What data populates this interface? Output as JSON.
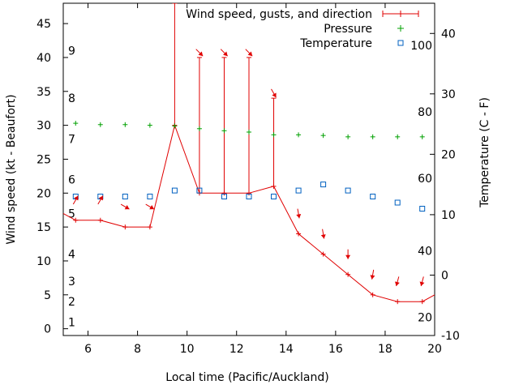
{
  "chart_data": {
    "type": "line",
    "xlabel": "Local time (Pacific/Auckland)",
    "ylabel_left": "Wind speed (kt - Beaufort)",
    "ylabel_right": "Temperature (C - F)",
    "xlim": [
      5,
      20
    ],
    "ylim_left": [
      -1,
      48
    ],
    "ylim_right": [
      -10,
      45
    ],
    "x_ticks": [
      6,
      8,
      10,
      12,
      14,
      16,
      18,
      20
    ],
    "y_left_ticks": [
      0,
      5,
      10,
      15,
      20,
      25,
      30,
      35,
      40,
      45
    ],
    "y_right_ticks": [
      -10,
      0,
      10,
      20,
      30,
      40
    ],
    "beaufort_labels": [
      {
        "label": "1",
        "kt": 1
      },
      {
        "label": "2",
        "kt": 4
      },
      {
        "label": "3",
        "kt": 7
      },
      {
        "label": "4",
        "kt": 11
      },
      {
        "label": "5",
        "kt": 17
      },
      {
        "label": "6",
        "kt": 22
      },
      {
        "label": "7",
        "kt": 28
      },
      {
        "label": "8",
        "kt": 34
      },
      {
        "label": "9",
        "kt": 41
      }
    ],
    "fahrenheit_labels": [
      {
        "label": "20",
        "c": -7
      },
      {
        "label": "40",
        "c": 4
      },
      {
        "label": "60",
        "c": 16
      },
      {
        "label": "80",
        "c": 27
      },
      {
        "label": "100",
        "c": 38
      }
    ],
    "legend_position": "top-right",
    "series": [
      {
        "name": "Wind speed, gusts, and direction",
        "color": "#e00000",
        "x": [
          4.5,
          5.5,
          6.5,
          7.5,
          8.5,
          9.5,
          10.5,
          11.5,
          12.5,
          13.5,
          14.5,
          15.5,
          16.5,
          17.5,
          18.5,
          19.5,
          20.5
        ],
        "speed": [
          18,
          16,
          16,
          15,
          15,
          30,
          20,
          20,
          20,
          21,
          14,
          11,
          8,
          5,
          4,
          4,
          6
        ],
        "gust": [
          null,
          null,
          null,
          null,
          null,
          48,
          40,
          40,
          40,
          34,
          null,
          null,
          null,
          null,
          null,
          null,
          null
        ],
        "direction_deg": [
          null,
          210,
          210,
          300,
          300,
          null,
          315,
          315,
          315,
          330,
          350,
          350,
          0,
          10,
          15,
          15,
          null
        ]
      },
      {
        "name": "Pressure",
        "color": "#00a000",
        "x": [
          5.5,
          6.5,
          7.5,
          8.5,
          9.5,
          10.5,
          11.5,
          12.5,
          13.5,
          14.5,
          15.5,
          16.5,
          17.5,
          18.5,
          19.5
        ],
        "y": [
          30.3,
          30.1,
          30.1,
          30.0,
          29.9,
          29.5,
          29.2,
          29.0,
          28.6,
          28.6,
          28.5,
          28.3,
          28.3,
          28.3,
          28.3
        ]
      },
      {
        "name": "Temperature",
        "color": "#0060c0",
        "x": [
          5.5,
          6.5,
          7.5,
          8.5,
          9.5,
          10.5,
          11.5,
          12.5,
          13.5,
          14.5,
          15.5,
          16.5,
          17.5,
          18.5,
          19.5
        ],
        "y": [
          13,
          13,
          13,
          13,
          14,
          14,
          13,
          13,
          13,
          14,
          15,
          14,
          13,
          12,
          11
        ]
      }
    ]
  }
}
